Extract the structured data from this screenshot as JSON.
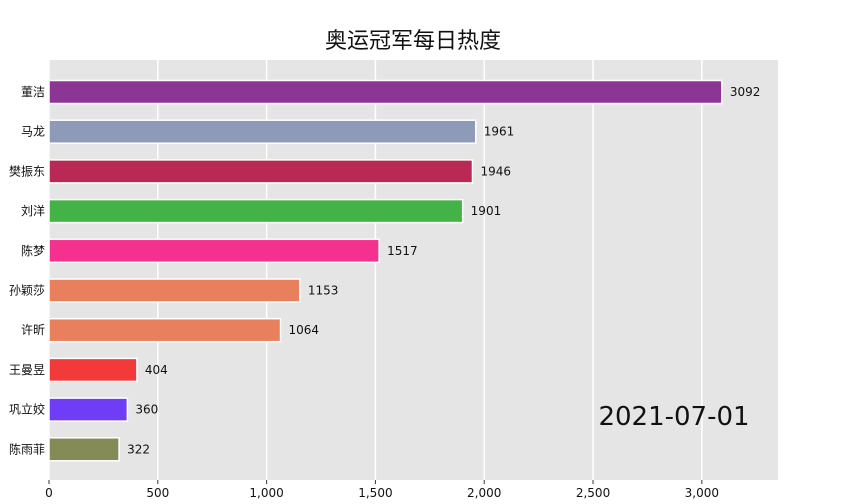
{
  "chart_data": {
    "type": "bar",
    "orientation": "horizontal",
    "title": "奥运冠军每日热度",
    "date": "2021-07-01",
    "categories": [
      "董洁",
      "马龙",
      "樊振东",
      "刘洋",
      "陈梦",
      "孙颖莎",
      "许昕",
      "王曼昱",
      "巩立姣",
      "陈雨菲"
    ],
    "values": [
      3092,
      1961,
      1946,
      1901,
      1517,
      1153,
      1064,
      404,
      360,
      322
    ],
    "colors": [
      "#8b3594",
      "#8d9bb8",
      "#b92954",
      "#44b347",
      "#f5318f",
      "#e8805e",
      "#e8805e",
      "#f33a3a",
      "#6f3df5",
      "#848b57"
    ],
    "xlim": [
      0,
      3350
    ],
    "xticks": [
      0,
      500,
      1000,
      1500,
      2000,
      2500,
      3000
    ],
    "xtick_labels": [
      "0",
      "500",
      "1,000",
      "1,500",
      "2,000",
      "2,500",
      "3,000"
    ],
    "grid": true,
    "background": "#e5e5e5"
  }
}
